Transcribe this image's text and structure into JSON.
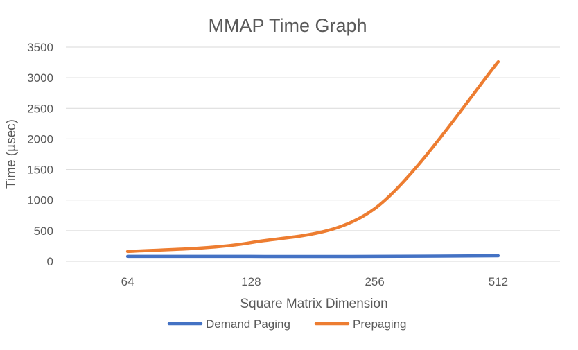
{
  "chart_data": {
    "type": "line",
    "title": "MMAP Time Graph",
    "xlabel": "Square Matrix Dimension",
    "ylabel": "Time (µsec)",
    "categories": [
      "64",
      "128",
      "256",
      "512"
    ],
    "ylim": [
      0,
      3500
    ],
    "yticks": [
      0,
      500,
      1000,
      1500,
      2000,
      2500,
      3000,
      3500
    ],
    "grid": true,
    "legend_position": "bottom",
    "series": [
      {
        "name": "Demand Paging",
        "color": "#4472c4",
        "values": [
          80,
          80,
          80,
          90
        ]
      },
      {
        "name": "Prepaging",
        "color": "#ed7d31",
        "values": [
          160,
          305,
          860,
          3260
        ]
      }
    ]
  }
}
